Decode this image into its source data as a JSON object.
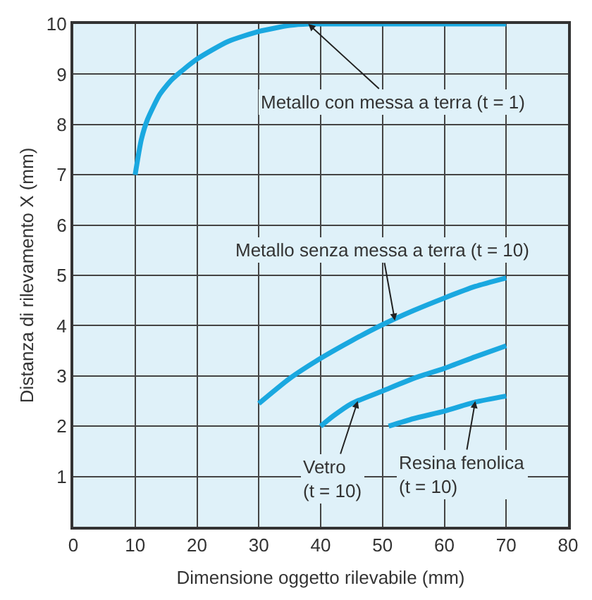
{
  "chart_data": {
    "type": "line",
    "xlabel": "Dimensione oggetto rilevabile (mm)",
    "ylabel": "Distanza di rilevamento X (mm)",
    "xlim": [
      0,
      80
    ],
    "xticks": [
      0,
      10,
      20,
      30,
      40,
      50,
      60,
      70,
      80
    ],
    "ylim": [
      0,
      10
    ],
    "yticks": [
      1,
      2,
      3,
      4,
      5,
      6,
      7,
      8,
      9,
      10
    ],
    "grid": true,
    "marker": "none",
    "line_style": "solid",
    "series": [
      {
        "color": "#1aa8e0",
        "x": [
          10,
          11,
          12,
          14,
          16,
          20,
          25,
          30,
          35,
          38,
          40,
          70
        ],
        "values": [
          7.0,
          7.7,
          8.1,
          8.6,
          8.9,
          9.3,
          9.65,
          9.85,
          9.97,
          10,
          10,
          10
        ]
      },
      {
        "color": "#1aa8e0",
        "x": [
          30,
          35,
          40,
          45,
          50,
          55,
          60,
          65,
          70
        ],
        "values": [
          2.45,
          2.95,
          3.35,
          3.7,
          4.02,
          4.3,
          4.55,
          4.78,
          4.95
        ]
      },
      {
        "color": "#1aa8e0",
        "x": [
          40,
          42,
          45,
          50,
          55,
          60,
          65,
          70
        ],
        "values": [
          2.0,
          2.2,
          2.45,
          2.7,
          2.95,
          3.15,
          3.38,
          3.6
        ]
      },
      {
        "color": "#1aa8e0",
        "x": [
          51,
          55,
          60,
          65,
          70
        ],
        "values": [
          2.0,
          2.15,
          2.3,
          2.48,
          2.6
        ]
      }
    ],
    "annotations": [
      {
        "text": "Metallo con messa a terra (t = 1)",
        "x": 38,
        "y": 10
      },
      {
        "text": "Metallo senza messa a terra (t = 10)",
        "x": 52,
        "y": 4.1
      },
      {
        "text": "Vetro\n(t = 10)",
        "x": 46,
        "y": 2.5
      },
      {
        "text": "Resina fenolica\n(t = 10)",
        "x": 65,
        "y": 2.5
      }
    ]
  }
}
